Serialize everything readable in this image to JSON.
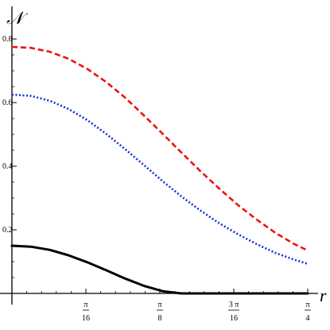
{
  "chart_data": {
    "type": "line",
    "title": "",
    "xlabel": "r",
    "ylabel": "𝒩",
    "xlim": [
      0,
      0.8
    ],
    "ylim": [
      0,
      0.82
    ],
    "grid": false,
    "legend": "none",
    "yticks": [
      {
        "value": 0.2,
        "label": "0.2"
      },
      {
        "value": 0.4,
        "label": "0.4"
      },
      {
        "value": 0.6,
        "label": "0.6"
      },
      {
        "value": 0.8,
        "label": "0.8"
      }
    ],
    "xticks": [
      {
        "value": 0.19635,
        "num": "π",
        "den": "16"
      },
      {
        "value": 0.3927,
        "num": "π",
        "den": "8"
      },
      {
        "value": 0.58905,
        "num": "3 π",
        "den": "16"
      },
      {
        "value": 0.7854,
        "num": "π",
        "den": "4"
      }
    ],
    "series": [
      {
        "color": "#ee1111",
        "dash": "7,4",
        "x": [
          0.0,
          0.05,
          0.1,
          0.15,
          0.2,
          0.25,
          0.3,
          0.35,
          0.4,
          0.45,
          0.5,
          0.55,
          0.6,
          0.65,
          0.7,
          0.75,
          0.7854
        ],
        "y": [
          0.775,
          0.772,
          0.76,
          0.738,
          0.706,
          0.665,
          0.616,
          0.56,
          0.502,
          0.443,
          0.385,
          0.33,
          0.278,
          0.232,
          0.19,
          0.155,
          0.135
        ]
      },
      {
        "color": "#1133cc",
        "dash": "2,2.5",
        "x": [
          0.0,
          0.05,
          0.1,
          0.15,
          0.2,
          0.25,
          0.3,
          0.35,
          0.4,
          0.45,
          0.5,
          0.55,
          0.6,
          0.65,
          0.7,
          0.75,
          0.7854
        ],
        "y": [
          0.625,
          0.621,
          0.606,
          0.58,
          0.545,
          0.502,
          0.454,
          0.404,
          0.353,
          0.305,
          0.261,
          0.221,
          0.186,
          0.155,
          0.127,
          0.106,
          0.093
        ]
      },
      {
        "color": "#000000",
        "dash": "",
        "x": [
          0.0,
          0.05,
          0.1,
          0.15,
          0.2,
          0.25,
          0.3,
          0.35,
          0.4,
          0.45,
          0.5,
          0.7854
        ],
        "y": [
          0.15,
          0.147,
          0.137,
          0.12,
          0.098,
          0.073,
          0.047,
          0.024,
          0.007,
          0.0,
          0.0,
          0.0
        ]
      }
    ]
  }
}
